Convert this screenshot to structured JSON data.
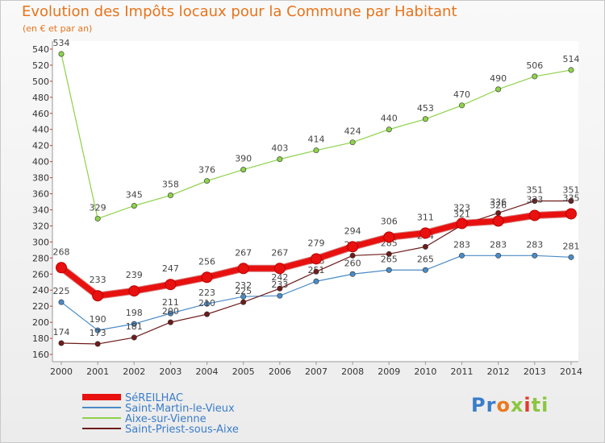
{
  "chart_data": {
    "type": "line",
    "title": "Evolution des Impôts locaux pour la Commune par Habitant",
    "subtitle": "(en € et par an)",
    "x": [
      "2000",
      "2001",
      "2002",
      "2003",
      "2004",
      "2005",
      "2006",
      "2007",
      "2008",
      "2009",
      "2010",
      "2011",
      "2012",
      "2013",
      "2014"
    ],
    "ylim": [
      160,
      550
    ],
    "yticks": [
      160,
      180,
      200,
      220,
      240,
      260,
      280,
      300,
      320,
      340,
      360,
      380,
      400,
      420,
      440,
      460,
      480,
      500,
      520,
      540
    ],
    "grid": false,
    "legend": "bottom-left",
    "series": [
      {
        "name": "SéREILHAC",
        "color": "#e8110f",
        "values": [
          268,
          233,
          239,
          247,
          256,
          267,
          267,
          279,
          294,
          306,
          311,
          323,
          326,
          333,
          335
        ],
        "labels": [
          "268",
          "233",
          "239",
          "247",
          "256",
          "267",
          "267",
          "279",
          "294",
          "306",
          "311",
          "323",
          "326",
          "333",
          "335"
        ]
      },
      {
        "name": "Saint-Martin-le-Vieux",
        "color": "#4a8bc7",
        "values": [
          225,
          190,
          198,
          211,
          223,
          232,
          233,
          251,
          260,
          265,
          265,
          283,
          283,
          283,
          281
        ],
        "labels": [
          "225",
          "190",
          "198",
          "211",
          "223",
          "232",
          "233",
          "251",
          "260",
          "265",
          "265",
          "283",
          "283",
          "283",
          "281"
        ]
      },
      {
        "name": "Aixe-sur-Vienne",
        "color": "#8dd24a",
        "values": [
          534,
          329,
          345,
          358,
          376,
          390,
          403,
          414,
          424,
          440,
          453,
          470,
          490,
          506,
          514
        ],
        "labels": [
          "534",
          "329",
          "345",
          "358",
          "376",
          "390",
          "403",
          "414",
          "424",
          "440",
          "453",
          "470",
          "490",
          "506",
          "514"
        ]
      },
      {
        "name": "Saint-Priest-sous-Aixe",
        "color": "#6e1c1c",
        "values": [
          174,
          173,
          181,
          200,
          210,
          225,
          242,
          263,
          283,
          285,
          294,
          321,
          336,
          351,
          351
        ],
        "labels": [
          "174",
          "173",
          "181",
          "200",
          "210",
          "225",
          "242",
          "263",
          "283",
          "285",
          "294",
          "321",
          "336",
          "351",
          "351"
        ]
      }
    ]
  },
  "logo": {
    "parts": [
      {
        "text": "Pr",
        "cls": "c1"
      },
      {
        "text": "o",
        "cls": "c2"
      },
      {
        "text": "x",
        "cls": "c3"
      },
      {
        "text": "i",
        "cls": "c4"
      },
      {
        "text": "ti",
        "cls": "c3"
      }
    ]
  }
}
